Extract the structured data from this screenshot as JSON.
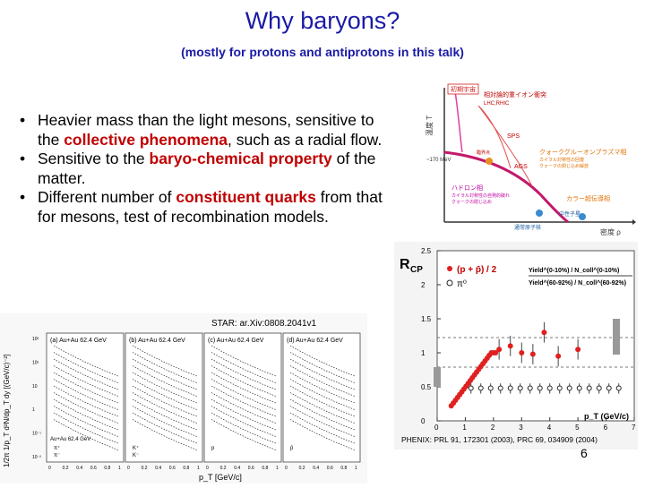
{
  "slide": {
    "title": "Why baryons?",
    "subtitle": "(mostly for protons and antiprotons in this talk)",
    "page_number": "6"
  },
  "bullets": [
    {
      "marker": "•",
      "before": "Heavier mass than the light mesons, sensitive to the ",
      "highlight": "collective phenomena",
      "after": ", such as a radial flow."
    },
    {
      "marker": "•",
      "before": "Sensitive to the ",
      "highlight": "baryo-chemical property",
      "after": " of the matter."
    },
    {
      "marker": "•",
      "before": "Different number of ",
      "highlight": "constituent quarks",
      "after": " from that for mesons, test of recombination models."
    }
  ],
  "phase_diagram": {
    "yaxis": "温度 T",
    "xaxis": "密度 ρ",
    "temp_label": "~170 MeV",
    "labels": {
      "early_universe": "初期宇宙",
      "heavy_ion": "相対論的重イオン衝突",
      "heavy_ion_sub": "LHC,RHIC",
      "sps": "SPS",
      "ags": "AGS",
      "qgp": "クォークグルーオンプラズマ相",
      "qgp_sub1": "カイラル対称性の回復",
      "qgp_sub2": "クォークの閉じ込め解放",
      "critical_point": "臨界点",
      "hadron": "ハドロン相",
      "hadron_sub1": "カイラル対称性の自発的破れ",
      "hadron_sub2": "クォークの閉じ込め",
      "superconducting": "カラー超伝導相",
      "nucleus": "通常原子核",
      "neutron_star": "中性子星"
    }
  },
  "rcp_plot": {
    "ylabel_main": "R",
    "ylabel_sub": "CP",
    "xlabel": "p_T (GeV/c)",
    "legend": {
      "proton_label": "(p + p̄) / 2",
      "pion_label": "π⁰",
      "ratio_top": "Yield^(0-10%) / N_coll^(0-10%)",
      "ratio_bottom": "Yield^(60-92%) / N_coll^(60-92%)"
    },
    "yticks": [
      "0",
      "0.5",
      "1",
      "1.5",
      "2",
      "2.5"
    ],
    "xticks": [
      "0",
      "1",
      "2",
      "3",
      "4",
      "5",
      "6",
      "7"
    ],
    "citation": "PHENIX: PRL 91, 172301 (2003), PRC 69, 034909 (2004)",
    "colors": {
      "proton": "#e02020",
      "pion": "#222222",
      "band": "#999999"
    }
  },
  "star_plot": {
    "citation": "STAR: ar.Xiv:0808.2041v1",
    "xlabel": "p_T [GeV/c]",
    "ylabel": "1/2π 1/p_T d²N/dp_T dy [(GeV/c)⁻²]",
    "panels": [
      {
        "tag": "(a)",
        "system": "Au+Au 62.4 GeV",
        "particles": [
          "π⁺",
          "π⁻"
        ]
      },
      {
        "tag": "(b)",
        "system": "Au+Au 62.4 GeV",
        "particles": [
          "K⁺",
          "K⁻"
        ]
      },
      {
        "tag": "(c)",
        "system": "Au+Au 62.4 GeV",
        "particles": [
          "p"
        ]
      },
      {
        "tag": "(d)",
        "system": "Au+Au 62.4 GeV",
        "particles": [
          "p̄"
        ]
      }
    ],
    "xticks": [
      "0",
      "0.2",
      "0.4",
      "0.6",
      "0.8",
      "1"
    ],
    "yticks": [
      "10³",
      "10²",
      "10",
      "1",
      "10⁻¹",
      "10⁻²"
    ]
  }
}
